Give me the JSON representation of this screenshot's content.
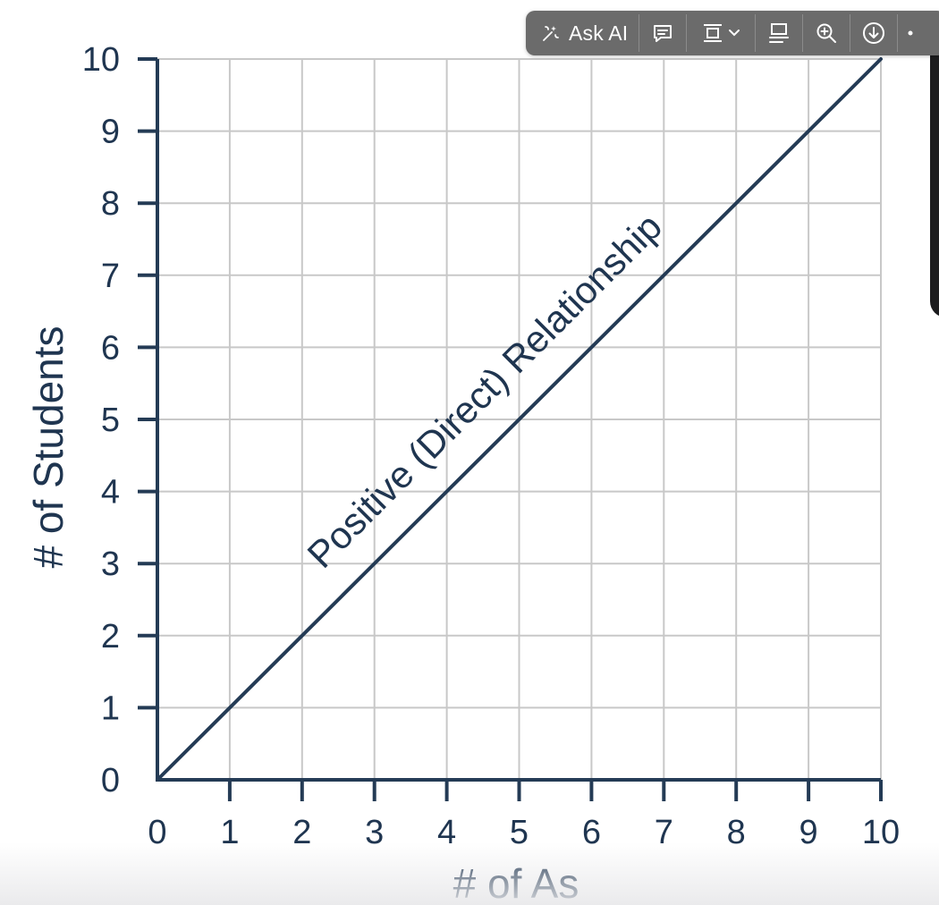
{
  "toolbar": {
    "ask_ai_label": "Ask AI",
    "buttons": [
      "ask-ai",
      "comment",
      "fit-page",
      "text-layout",
      "zoom-in",
      "download",
      "more"
    ]
  },
  "chart_data": {
    "type": "line",
    "title": "",
    "xlabel": "# of As",
    "ylabel": "# of Students",
    "xlim": [
      0,
      10
    ],
    "ylim": [
      0,
      10
    ],
    "x_ticks": [
      0,
      1,
      2,
      3,
      4,
      5,
      6,
      7,
      8,
      9,
      10
    ],
    "y_ticks": [
      0,
      1,
      2,
      3,
      4,
      5,
      6,
      7,
      8,
      9,
      10
    ],
    "grid": true,
    "series": [
      {
        "x": [
          0,
          10
        ],
        "y": [
          0,
          10
        ]
      }
    ],
    "annotations": [
      {
        "text": "Positive (Direct) Relationship"
      }
    ],
    "colors": {
      "line": "#243b55",
      "grid": "#c8c8c8",
      "axis": "#243b55"
    }
  }
}
